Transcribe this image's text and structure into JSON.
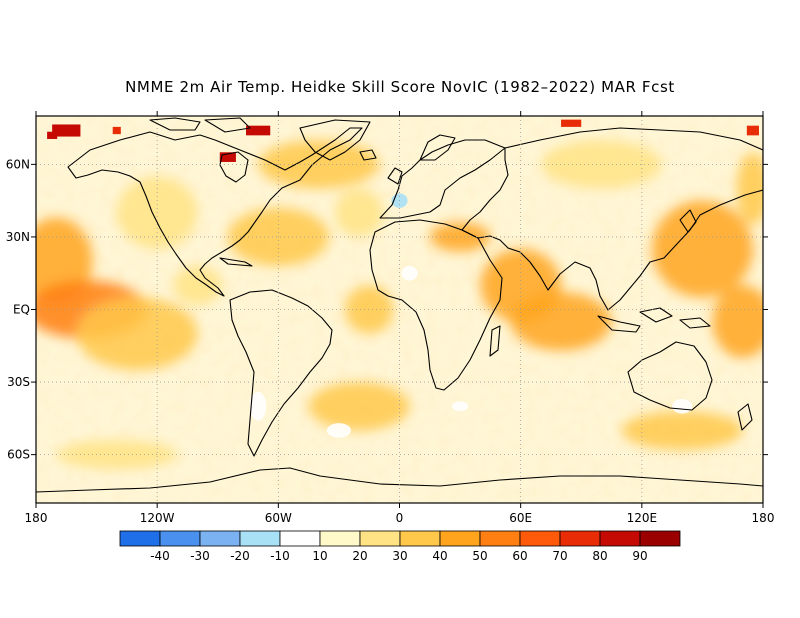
{
  "title": "NMME 2m Air Temp. Heidke Skill Score NovIC (1982–2022) MAR Fcst",
  "map": {
    "projection": "cylindrical-equidistant",
    "lon_range": [
      -180,
      180
    ],
    "lat_range": [
      -80,
      80
    ],
    "grid": "dotted",
    "lon_ticks": [
      {
        "value": -180,
        "label": "180"
      },
      {
        "value": -120,
        "label": "120W"
      },
      {
        "value": -60,
        "label": "60W"
      },
      {
        "value": 0,
        "label": "0"
      },
      {
        "value": 60,
        "label": "60E"
      },
      {
        "value": 120,
        "label": "120E"
      },
      {
        "value": 180,
        "label": "180"
      }
    ],
    "lat_ticks": [
      {
        "value": 60,
        "label": "60N"
      },
      {
        "value": 30,
        "label": "30N"
      },
      {
        "value": 0,
        "label": "EQ"
      },
      {
        "value": -30,
        "label": "30S"
      },
      {
        "value": -60,
        "label": "60S"
      }
    ],
    "skill_regions": [
      {
        "lon": -170,
        "lat": 20,
        "rx": 18,
        "ry": 18,
        "level": 45
      },
      {
        "lon": -155,
        "lat": 0,
        "rx": 30,
        "ry": 12,
        "level": 50
      },
      {
        "lon": -130,
        "lat": -10,
        "rx": 30,
        "ry": 15,
        "level": 35
      },
      {
        "lon": -120,
        "lat": 40,
        "rx": 20,
        "ry": 15,
        "level": 25
      },
      {
        "lon": -60,
        "lat": 30,
        "rx": 25,
        "ry": 12,
        "level": 35
      },
      {
        "lon": -40,
        "lat": 60,
        "rx": 30,
        "ry": 10,
        "level": 35
      },
      {
        "lon": -20,
        "lat": 40,
        "rx": 12,
        "ry": 10,
        "level": 25
      },
      {
        "lon": 30,
        "lat": 30,
        "rx": 15,
        "ry": 6,
        "level": 45
      },
      {
        "lon": 60,
        "lat": 10,
        "rx": 20,
        "ry": 15,
        "level": 40
      },
      {
        "lon": 80,
        "lat": -5,
        "rx": 25,
        "ry": 12,
        "level": 40
      },
      {
        "lon": 150,
        "lat": 25,
        "rx": 25,
        "ry": 20,
        "level": 40
      },
      {
        "lon": 170,
        "lat": -5,
        "rx": 15,
        "ry": 15,
        "level": 45
      },
      {
        "lon": -20,
        "lat": -40,
        "rx": 25,
        "ry": 10,
        "level": 30
      },
      {
        "lon": 140,
        "lat": -50,
        "rx": 30,
        "ry": 8,
        "level": 30
      },
      {
        "lon": -140,
        "lat": -60,
        "rx": 30,
        "ry": 6,
        "level": 20
      },
      {
        "lon": 100,
        "lat": 60,
        "rx": 30,
        "ry": 10,
        "level": 20
      },
      {
        "lon": -100,
        "lat": 10,
        "rx": 12,
        "ry": 8,
        "level": 25
      },
      {
        "lon": -15,
        "lat": 0,
        "rx": 12,
        "ry": 10,
        "level": 30
      },
      {
        "lon": 175,
        "lat": 50,
        "rx": 8,
        "ry": 15,
        "level": 35
      }
    ],
    "high_skill_patches": [
      {
        "lon": -165,
        "lat": 74,
        "w": 14,
        "h": 5,
        "level": 80
      },
      {
        "lon": -172,
        "lat": 72,
        "w": 5,
        "h": 3,
        "level": 80
      },
      {
        "lon": -140,
        "lat": 74,
        "w": 4,
        "h": 3,
        "level": 70
      },
      {
        "lon": -70,
        "lat": 74,
        "w": 12,
        "h": 4,
        "level": 80
      },
      {
        "lon": -85,
        "lat": 63,
        "w": 8,
        "h": 4,
        "level": 80
      },
      {
        "lon": 85,
        "lat": 77,
        "w": 10,
        "h": 3,
        "level": 70
      },
      {
        "lon": 175,
        "lat": 74,
        "w": 6,
        "h": 4,
        "level": 70
      }
    ],
    "negative_patches": [
      {
        "lon": -30,
        "lat": -50,
        "rx": 6,
        "ry": 3,
        "level": -10
      },
      {
        "lon": 30,
        "lat": -40,
        "rx": 4,
        "ry": 2,
        "level": -10
      },
      {
        "lon": 140,
        "lat": -40,
        "rx": 5,
        "ry": 3,
        "level": -10
      },
      {
        "lon": -70,
        "lat": -40,
        "rx": 4,
        "ry": 6,
        "level": -10
      },
      {
        "lon": 0,
        "lat": 45,
        "rx": 4,
        "ry": 3,
        "level": -20
      },
      {
        "lon": 5,
        "lat": 15,
        "rx": 4,
        "ry": 3,
        "level": -10
      }
    ]
  },
  "colorbar": {
    "colors": [
      "#1f6fe8",
      "#4a90ef",
      "#7bb2f2",
      "#a8e0f6",
      "#ffffff",
      "#fff8c8",
      "#ffe384",
      "#ffc84a",
      "#ffa41c",
      "#ff7f12",
      "#ff5a0a",
      "#e82c05",
      "#c40a02",
      "#9a0000"
    ],
    "labels": [
      "-40",
      "-30",
      "-20",
      "-10",
      "10",
      "20",
      "30",
      "40",
      "50",
      "60",
      "70",
      "80",
      "90"
    ]
  }
}
